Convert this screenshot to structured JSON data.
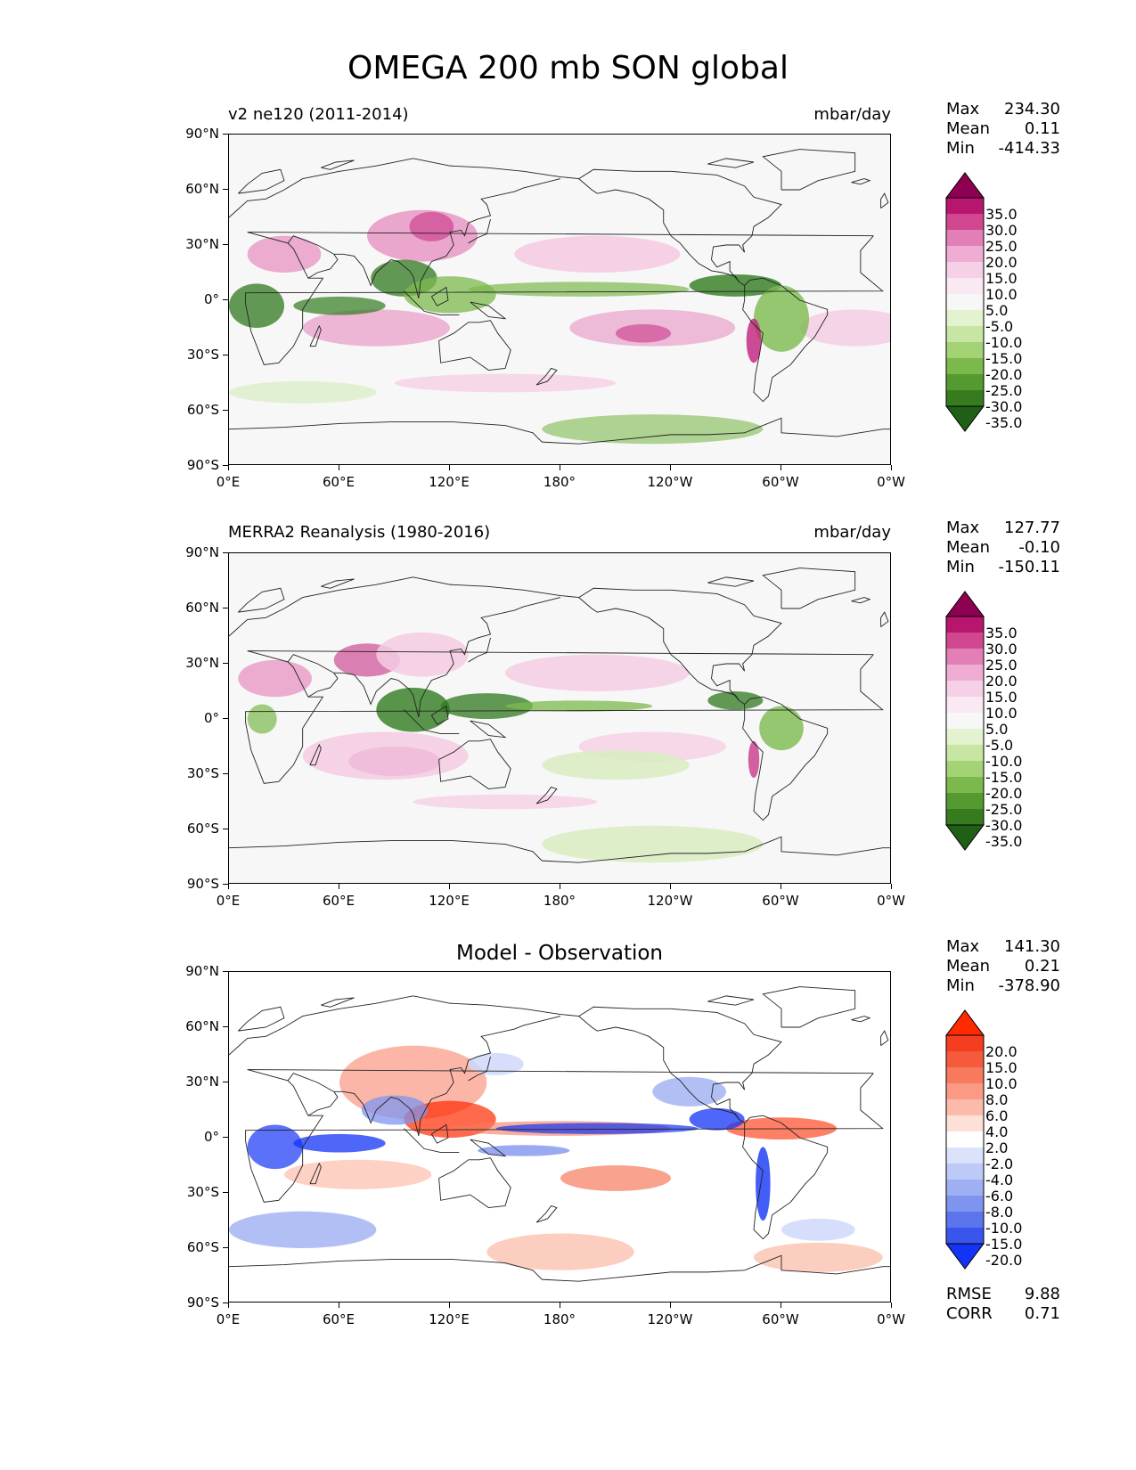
{
  "figure": {
    "title": "OMEGA 200 mb SON global"
  },
  "axes": {
    "y_ticks": [
      "90°N",
      "60°N",
      "30°N",
      "0°",
      "30°S",
      "60°S",
      "90°S"
    ],
    "x_ticks": [
      "0°E",
      "60°E",
      "120°E",
      "180°",
      "120°W",
      "60°W",
      "0°W"
    ]
  },
  "panels": [
    {
      "id": "model",
      "title_left": "v2 ne120 (2011-2014)",
      "title_right": "mbar/day",
      "title_center": "",
      "stats": {
        "max_label": "Max",
        "max": "234.30",
        "mean_label": "Mean",
        "mean": "0.11",
        "min_label": "Min",
        "min": "-414.33"
      },
      "colorbar": {
        "labels": [
          "35.0",
          "30.0",
          "25.0",
          "20.0",
          "15.0",
          "10.0",
          "5.0",
          "-5.0",
          "-10.0",
          "-15.0",
          "-20.0",
          "-25.0",
          "-30.0",
          "-35.0"
        ],
        "colors": [
          "#8e0152",
          "#b8166e",
          "#d0478f",
          "#e27fb6",
          "#efadd3",
          "#f6d0e6",
          "#fae8f2",
          "#f7f7f7",
          "#e3f2cf",
          "#c7e6a3",
          "#a3d375",
          "#7cb94d",
          "#559a30",
          "#367c1f",
          "#1f5f17"
        ]
      }
    },
    {
      "id": "obs",
      "title_left": "MERRA2 Reanalysis (1980-2016)",
      "title_right": "mbar/day",
      "title_center": "",
      "stats": {
        "max_label": "Max",
        "max": "127.77",
        "mean_label": "Mean",
        "mean": "-0.10",
        "min_label": "Min",
        "min": "-150.11"
      },
      "colorbar": {
        "labels": [
          "35.0",
          "30.0",
          "25.0",
          "20.0",
          "15.0",
          "10.0",
          "5.0",
          "-5.0",
          "-10.0",
          "-15.0",
          "-20.0",
          "-25.0",
          "-30.0",
          "-35.0"
        ],
        "colors": [
          "#8e0152",
          "#b8166e",
          "#d0478f",
          "#e27fb6",
          "#efadd3",
          "#f6d0e6",
          "#fae8f2",
          "#f7f7f7",
          "#e3f2cf",
          "#c7e6a3",
          "#a3d375",
          "#7cb94d",
          "#559a30",
          "#367c1f",
          "#1f5f17"
        ]
      }
    },
    {
      "id": "diff",
      "title_left": "",
      "title_right": "",
      "title_center": "Model - Observation",
      "stats": {
        "max_label": "Max",
        "max": "141.30",
        "mean_label": "Mean",
        "mean": "0.21",
        "min_label": "Min",
        "min": "-378.90"
      },
      "colorbar": {
        "labels": [
          "20.0",
          "15.0",
          "10.0",
          "8.0",
          "6.0",
          "4.0",
          "2.0",
          "-2.0",
          "-4.0",
          "-6.0",
          "-8.0",
          "-10.0",
          "-15.0",
          "-20.0"
        ],
        "colors": [
          "#ff2a00",
          "#f53d1f",
          "#f55a3c",
          "#f77a5e",
          "#fa9a85",
          "#fcbbaa",
          "#fde0d6",
          "#ffffff",
          "#dbe2fb",
          "#bdc9f7",
          "#9eaff3",
          "#7f94ef",
          "#5c74ec",
          "#3a55ee",
          "#1434f5"
        ]
      },
      "rmse_label": "RMSE",
      "rmse": "9.88",
      "corr_label": "CORR",
      "corr": "0.71"
    }
  ],
  "colors": {
    "pink_strong": "#c21e7a",
    "pink_mid": "#e58bbd",
    "pink_light": "#f5cbe2",
    "green_strong": "#2f7a1e",
    "green_mid": "#7cb94d",
    "green_light": "#d9ecc2",
    "red_strong": "#ff2a00",
    "red_mid": "#f77a5e",
    "red_light": "#fcc5b5",
    "blue_strong": "#1434f5",
    "blue_mid": "#7f94ef",
    "blue_light": "#cfd8fa"
  }
}
